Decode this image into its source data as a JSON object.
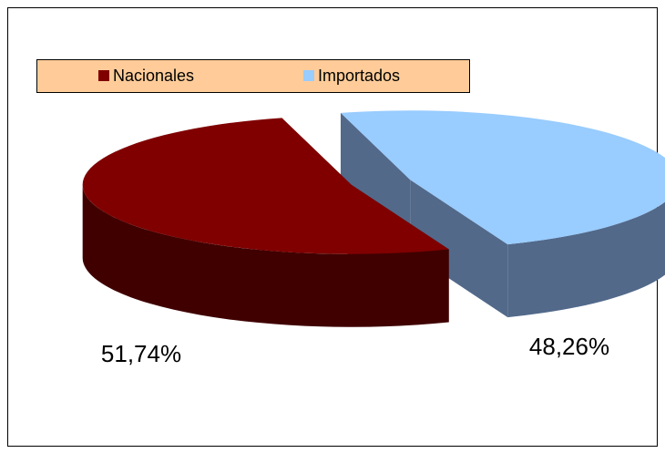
{
  "chart_data": {
    "type": "pie",
    "categories": [
      "Nacionales",
      "Importados"
    ],
    "values": [
      51.74,
      48.26
    ],
    "value_labels": [
      "51,74%",
      "48,26%"
    ],
    "colors": [
      "#800000",
      "#99CCFF"
    ],
    "side_colors": [
      "#400000",
      "#52698A"
    ],
    "legend": "top-left"
  }
}
